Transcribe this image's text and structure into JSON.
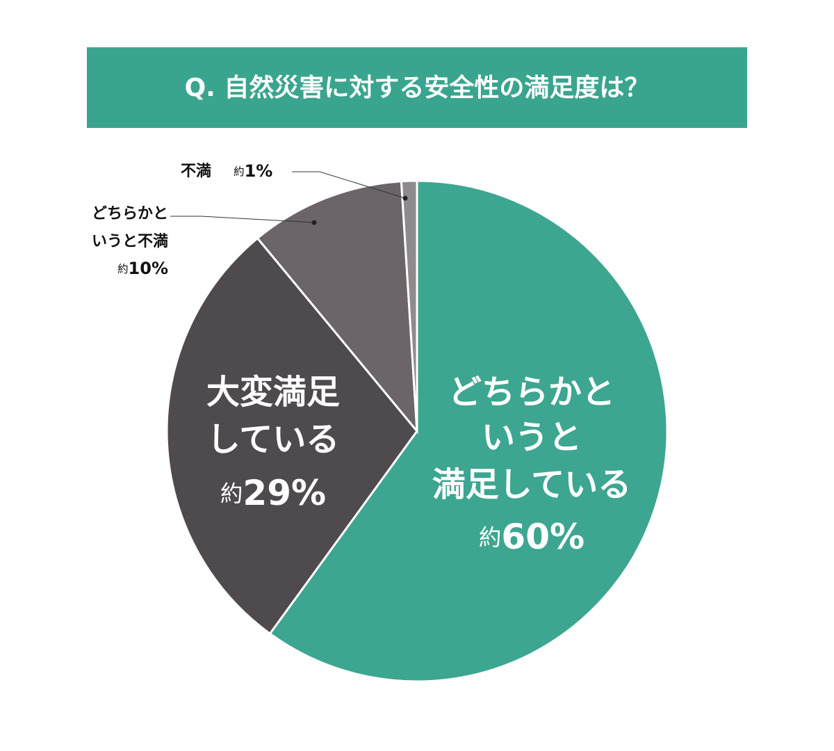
{
  "chart_data": {
    "type": "pie",
    "title": "Q. 自然災害に対する安全性の満足度は？",
    "categories": [
      "どちらかと\nいうと\n満足している",
      "大変満足\nしている",
      "どちらかと\nいうと不満",
      "不満"
    ],
    "values": [
      60,
      29,
      10,
      1
    ],
    "value_labels": [
      "約60%",
      "約29%",
      "約10%",
      "約1%"
    ],
    "colors": [
      "#3da690",
      "#4f4a4e",
      "#6b6569",
      "#8f8a8d"
    ]
  }
}
